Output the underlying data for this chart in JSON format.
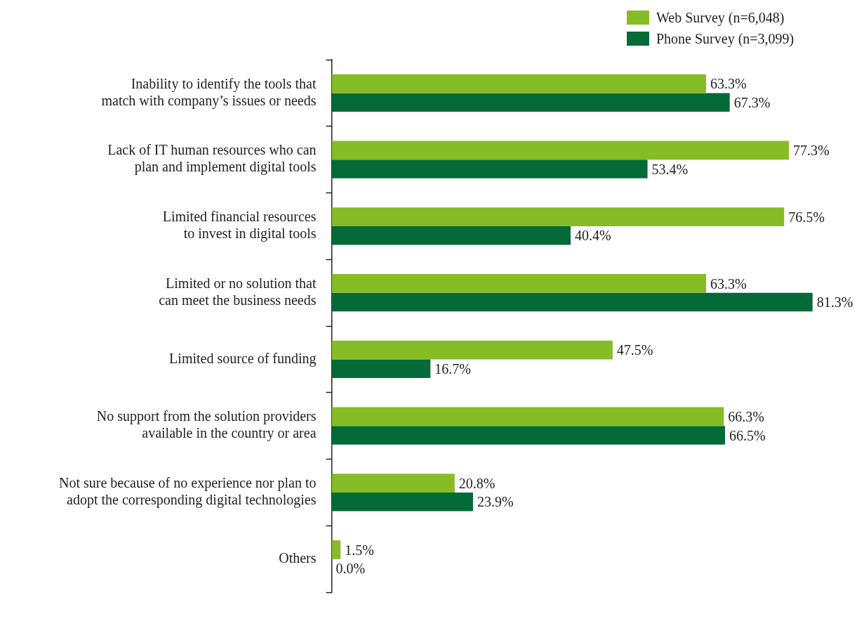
{
  "chart_data": {
    "type": "bar",
    "orientation": "horizontal",
    "legend": "top right",
    "categories": [
      "Inability to identify the tools that match with company’s issues or needs",
      "Lack of IT human resources who can plan and implement digital tools",
      "Limited financial resources to invest in digital tools",
      "Limited or no solution that can meet the business needs",
      "Limited source of funding",
      "No support from the solution providers available in the country or area",
      "Not sure because of no experience nor plan to adopt the corresponding digital technologies",
      "Others"
    ],
    "series": [
      {
        "name": "Web Survey (n=6,048)",
        "color": "#86bc25",
        "values": [
          63.3,
          77.3,
          76.5,
          63.3,
          47.5,
          66.3,
          20.8,
          1.5
        ],
        "value_labels": [
          "63.3%",
          "77.3%",
          "76.5%",
          "63.3%",
          "47.5%",
          "66.3%",
          "20.8%",
          "1.5%"
        ]
      },
      {
        "name": "Phone Survey (n=3,099)",
        "color": "#046a38",
        "values": [
          67.3,
          53.4,
          40.4,
          81.3,
          16.7,
          66.5,
          23.9,
          0.0
        ],
        "value_labels": [
          "67.3%",
          "53.4%",
          "40.4%",
          "81.3%",
          "16.7%",
          "66.5%",
          "23.9%",
          "0.0%"
        ]
      }
    ]
  }
}
